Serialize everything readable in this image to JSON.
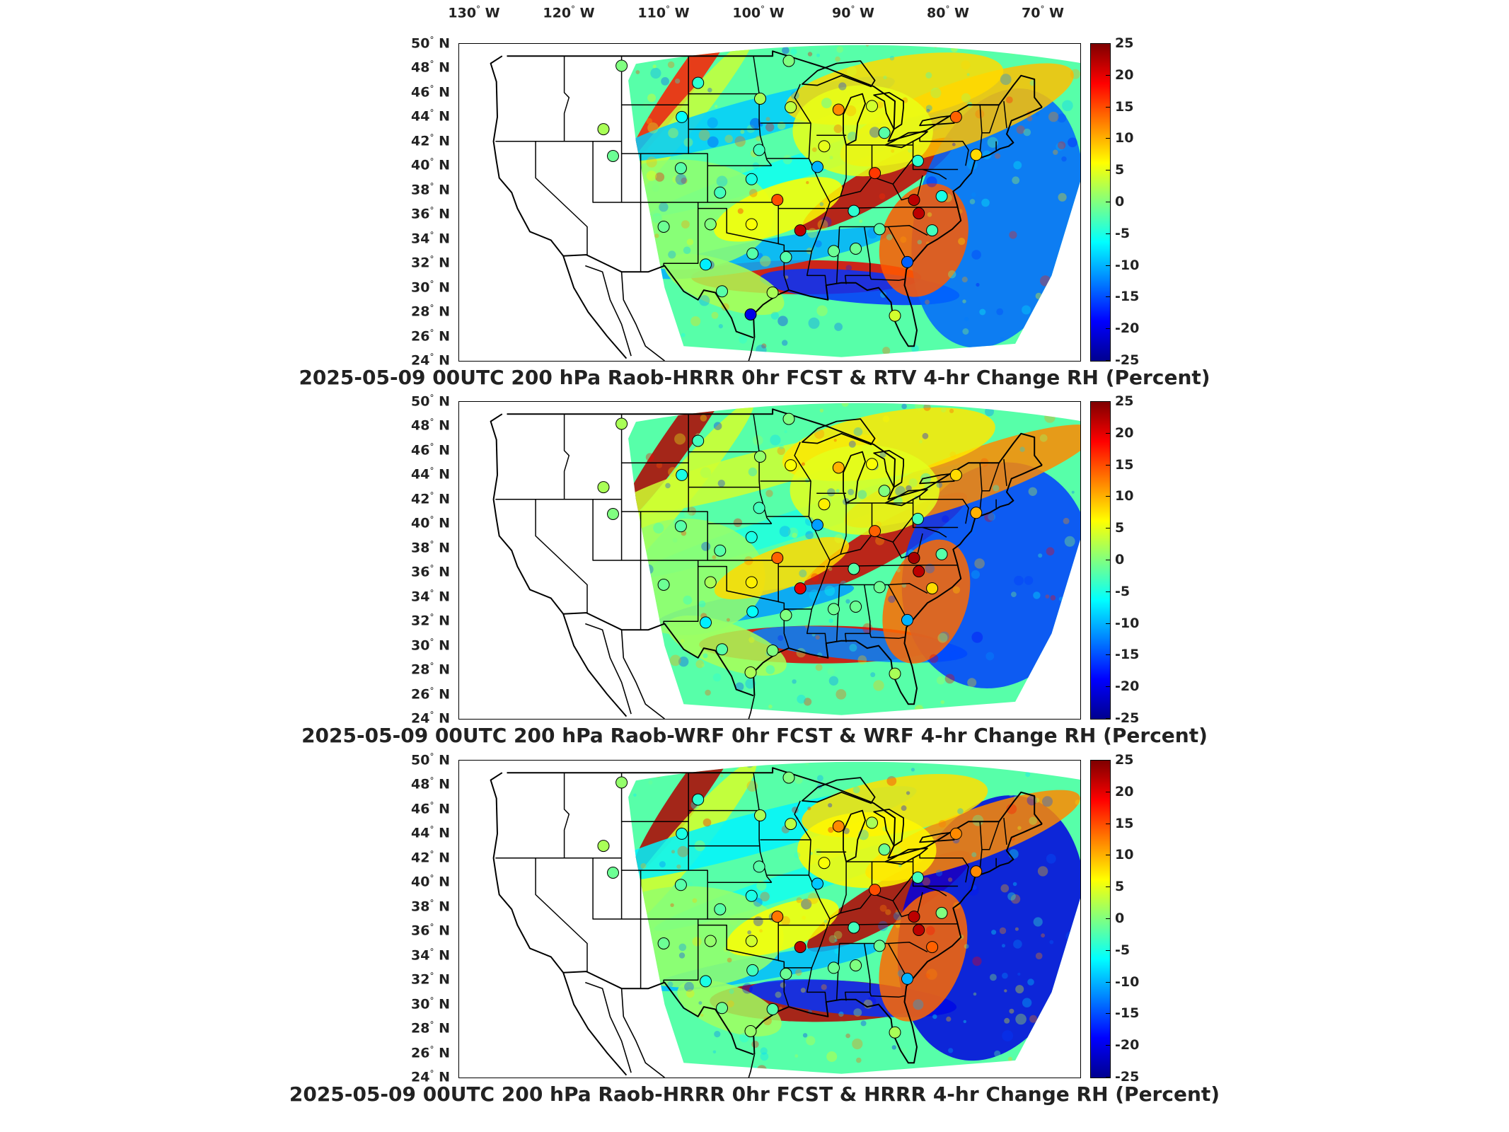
{
  "lon_labels": [
    {
      "text": "130",
      "suffix": "W",
      "lon": -130
    },
    {
      "text": "120",
      "suffix": "W",
      "lon": -120
    },
    {
      "text": "110",
      "suffix": "W",
      "lon": -110
    },
    {
      "text": "100",
      "suffix": "W",
      "lon": -100
    },
    {
      "text": "90",
      "suffix": "W",
      "lon": -90
    },
    {
      "text": "80",
      "suffix": "W",
      "lon": -80
    },
    {
      "text": "70",
      "suffix": "W",
      "lon": -70
    }
  ],
  "lat_labels": [
    "50",
    "48",
    "46",
    "44",
    "42",
    "40",
    "38",
    "36",
    "34",
    "32",
    "30",
    "28",
    "26",
    "24"
  ],
  "lat_suffix": "N",
  "colorbar": {
    "ticks": [
      "25",
      "20",
      "15",
      "10",
      "5",
      "0",
      "-5",
      "-10",
      "-15",
      "-20",
      "-25"
    ],
    "colors": [
      "#7f0000",
      "#ff0000",
      "#ff8000",
      "#ffff00",
      "#80ff80",
      "#00ffff",
      "#0080ff",
      "#0000ff",
      "#00008f"
    ]
  },
  "panels": [
    {
      "title": "2025-05-09 00UTC 200 hPa Raob-HRRR 0hr FCST & RTV 4-hr Change RH (Percent)",
      "seed": 11
    },
    {
      "title": "2025-05-09 00UTC 200 hPa Raob-WRF 0hr FCST & WRF 4-hr Change RH (Percent)",
      "seed": 23
    },
    {
      "title": "2025-05-09 00UTC 200 hPa Raob-HRRR 0hr FCST & HRRR 4-hr Change RH (Percent)",
      "seed": 37
    }
  ],
  "stations": [
    {
      "name": "s1",
      "lon": -111.0,
      "lat": 48.2,
      "v": [
        0,
        2,
        1
      ]
    },
    {
      "name": "s2",
      "lon": -103.0,
      "lat": 46.8,
      "v": [
        -4,
        -3,
        -4
      ]
    },
    {
      "name": "s3",
      "lon": -96.5,
      "lat": 45.5,
      "v": [
        2,
        1,
        2
      ]
    },
    {
      "name": "s4",
      "lon": -93.5,
      "lat": 48.6,
      "v": [
        0,
        0,
        0
      ]
    },
    {
      "name": "s5",
      "lon": -104.7,
      "lat": 44.0,
      "v": [
        -6,
        -5,
        -5
      ]
    },
    {
      "name": "s6",
      "lon": -112.9,
      "lat": 43.0,
      "v": [
        2,
        2,
        2
      ]
    },
    {
      "name": "s7",
      "lon": -93.3,
      "lat": 44.8,
      "v": [
        3,
        6,
        3
      ]
    },
    {
      "name": "s8",
      "lon": -88.3,
      "lat": 44.6,
      "v": [
        12,
        10,
        12
      ]
    },
    {
      "name": "s9",
      "lon": -84.8,
      "lat": 44.9,
      "v": [
        4,
        6,
        2
      ]
    },
    {
      "name": "s10",
      "lon": -76.0,
      "lat": 44.0,
      "v": [
        14,
        8,
        12
      ]
    },
    {
      "name": "s11",
      "lon": -83.5,
      "lat": 42.7,
      "v": [
        -2,
        0,
        -1
      ]
    },
    {
      "name": "s12",
      "lon": -96.6,
      "lat": 41.3,
      "v": [
        -3,
        -3,
        -2
      ]
    },
    {
      "name": "s13",
      "lon": -89.8,
      "lat": 41.6,
      "v": [
        5,
        7,
        6
      ]
    },
    {
      "name": "s14",
      "lon": -90.5,
      "lat": 39.9,
      "v": [
        -10,
        -11,
        -9
      ]
    },
    {
      "name": "s15",
      "lon": -84.5,
      "lat": 39.4,
      "v": [
        16,
        14,
        15
      ]
    },
    {
      "name": "s16",
      "lon": -80.0,
      "lat": 40.4,
      "v": [
        -4,
        -3,
        -3
      ]
    },
    {
      "name": "s17",
      "lon": -73.9,
      "lat": 40.9,
      "v": [
        8,
        10,
        12
      ]
    },
    {
      "name": "s18",
      "lon": -77.5,
      "lat": 37.5,
      "v": [
        -5,
        -2,
        0
      ]
    },
    {
      "name": "s19",
      "lon": -80.4,
      "lat": 37.2,
      "v": [
        22,
        23,
        22
      ]
    },
    {
      "name": "s20",
      "lon": -79.9,
      "lat": 36.1,
      "v": [
        22,
        22,
        22
      ]
    },
    {
      "name": "s21",
      "lon": -111.9,
      "lat": 40.8,
      "v": [
        -1,
        0,
        -1
      ]
    },
    {
      "name": "s22",
      "lon": -104.8,
      "lat": 39.8,
      "v": [
        -2,
        -2,
        -2
      ]
    },
    {
      "name": "s23",
      "lon": -100.7,
      "lat": 37.8,
      "v": [
        -3,
        -2,
        -2
      ]
    },
    {
      "name": "s24",
      "lon": -97.4,
      "lat": 38.9,
      "v": [
        -5,
        -5,
        -5
      ]
    },
    {
      "name": "s25",
      "lon": -94.7,
      "lat": 37.2,
      "v": [
        15,
        14,
        13
      ]
    },
    {
      "name": "s26",
      "lon": -92.3,
      "lat": 34.7,
      "v": [
        22,
        20,
        22
      ]
    },
    {
      "name": "s27",
      "lon": -86.7,
      "lat": 36.3,
      "v": [
        -4,
        -2,
        -3
      ]
    },
    {
      "name": "s28",
      "lon": -84.0,
      "lat": 34.8,
      "v": [
        -2,
        -1,
        -1
      ]
    },
    {
      "name": "s29",
      "lon": -106.6,
      "lat": 35.0,
      "v": [
        -1,
        -1,
        -1
      ]
    },
    {
      "name": "s30",
      "lon": -101.7,
      "lat": 35.2,
      "v": [
        0,
        2,
        1
      ]
    },
    {
      "name": "s31",
      "lon": -97.4,
      "lat": 35.2,
      "v": [
        6,
        7,
        4
      ]
    },
    {
      "name": "s32",
      "lon": -97.3,
      "lat": 32.8,
      "v": [
        -2,
        -6,
        -3
      ]
    },
    {
      "name": "s33",
      "lon": -102.2,
      "lat": 31.9,
      "v": [
        -7,
        -7,
        -5
      ]
    },
    {
      "name": "s34",
      "lon": -93.8,
      "lat": 32.5,
      "v": [
        -2,
        0,
        -1
      ]
    },
    {
      "name": "s35",
      "lon": -88.8,
      "lat": 33.0,
      "v": [
        -1,
        -1,
        -1
      ]
    },
    {
      "name": "s36",
      "lon": -86.5,
      "lat": 33.2,
      "v": [
        -1,
        -1,
        0
      ]
    },
    {
      "name": "s37",
      "lon": -81.1,
      "lat": 32.1,
      "v": [
        -14,
        -10,
        -10
      ]
    },
    {
      "name": "s38",
      "lon": -78.5,
      "lat": 34.7,
      "v": [
        -3,
        8,
        14
      ]
    },
    {
      "name": "s39",
      "lon": -100.5,
      "lat": 29.7,
      "v": [
        -2,
        -2,
        -1
      ]
    },
    {
      "name": "s40",
      "lon": -97.5,
      "lat": 27.8,
      "v": [
        -20,
        2,
        1
      ]
    },
    {
      "name": "s41",
      "lon": -95.2,
      "lat": 29.6,
      "v": [
        2,
        0,
        -2
      ]
    },
    {
      "name": "s42",
      "lon": -82.4,
      "lat": 27.7,
      "v": [
        4,
        2,
        2
      ]
    }
  ]
}
